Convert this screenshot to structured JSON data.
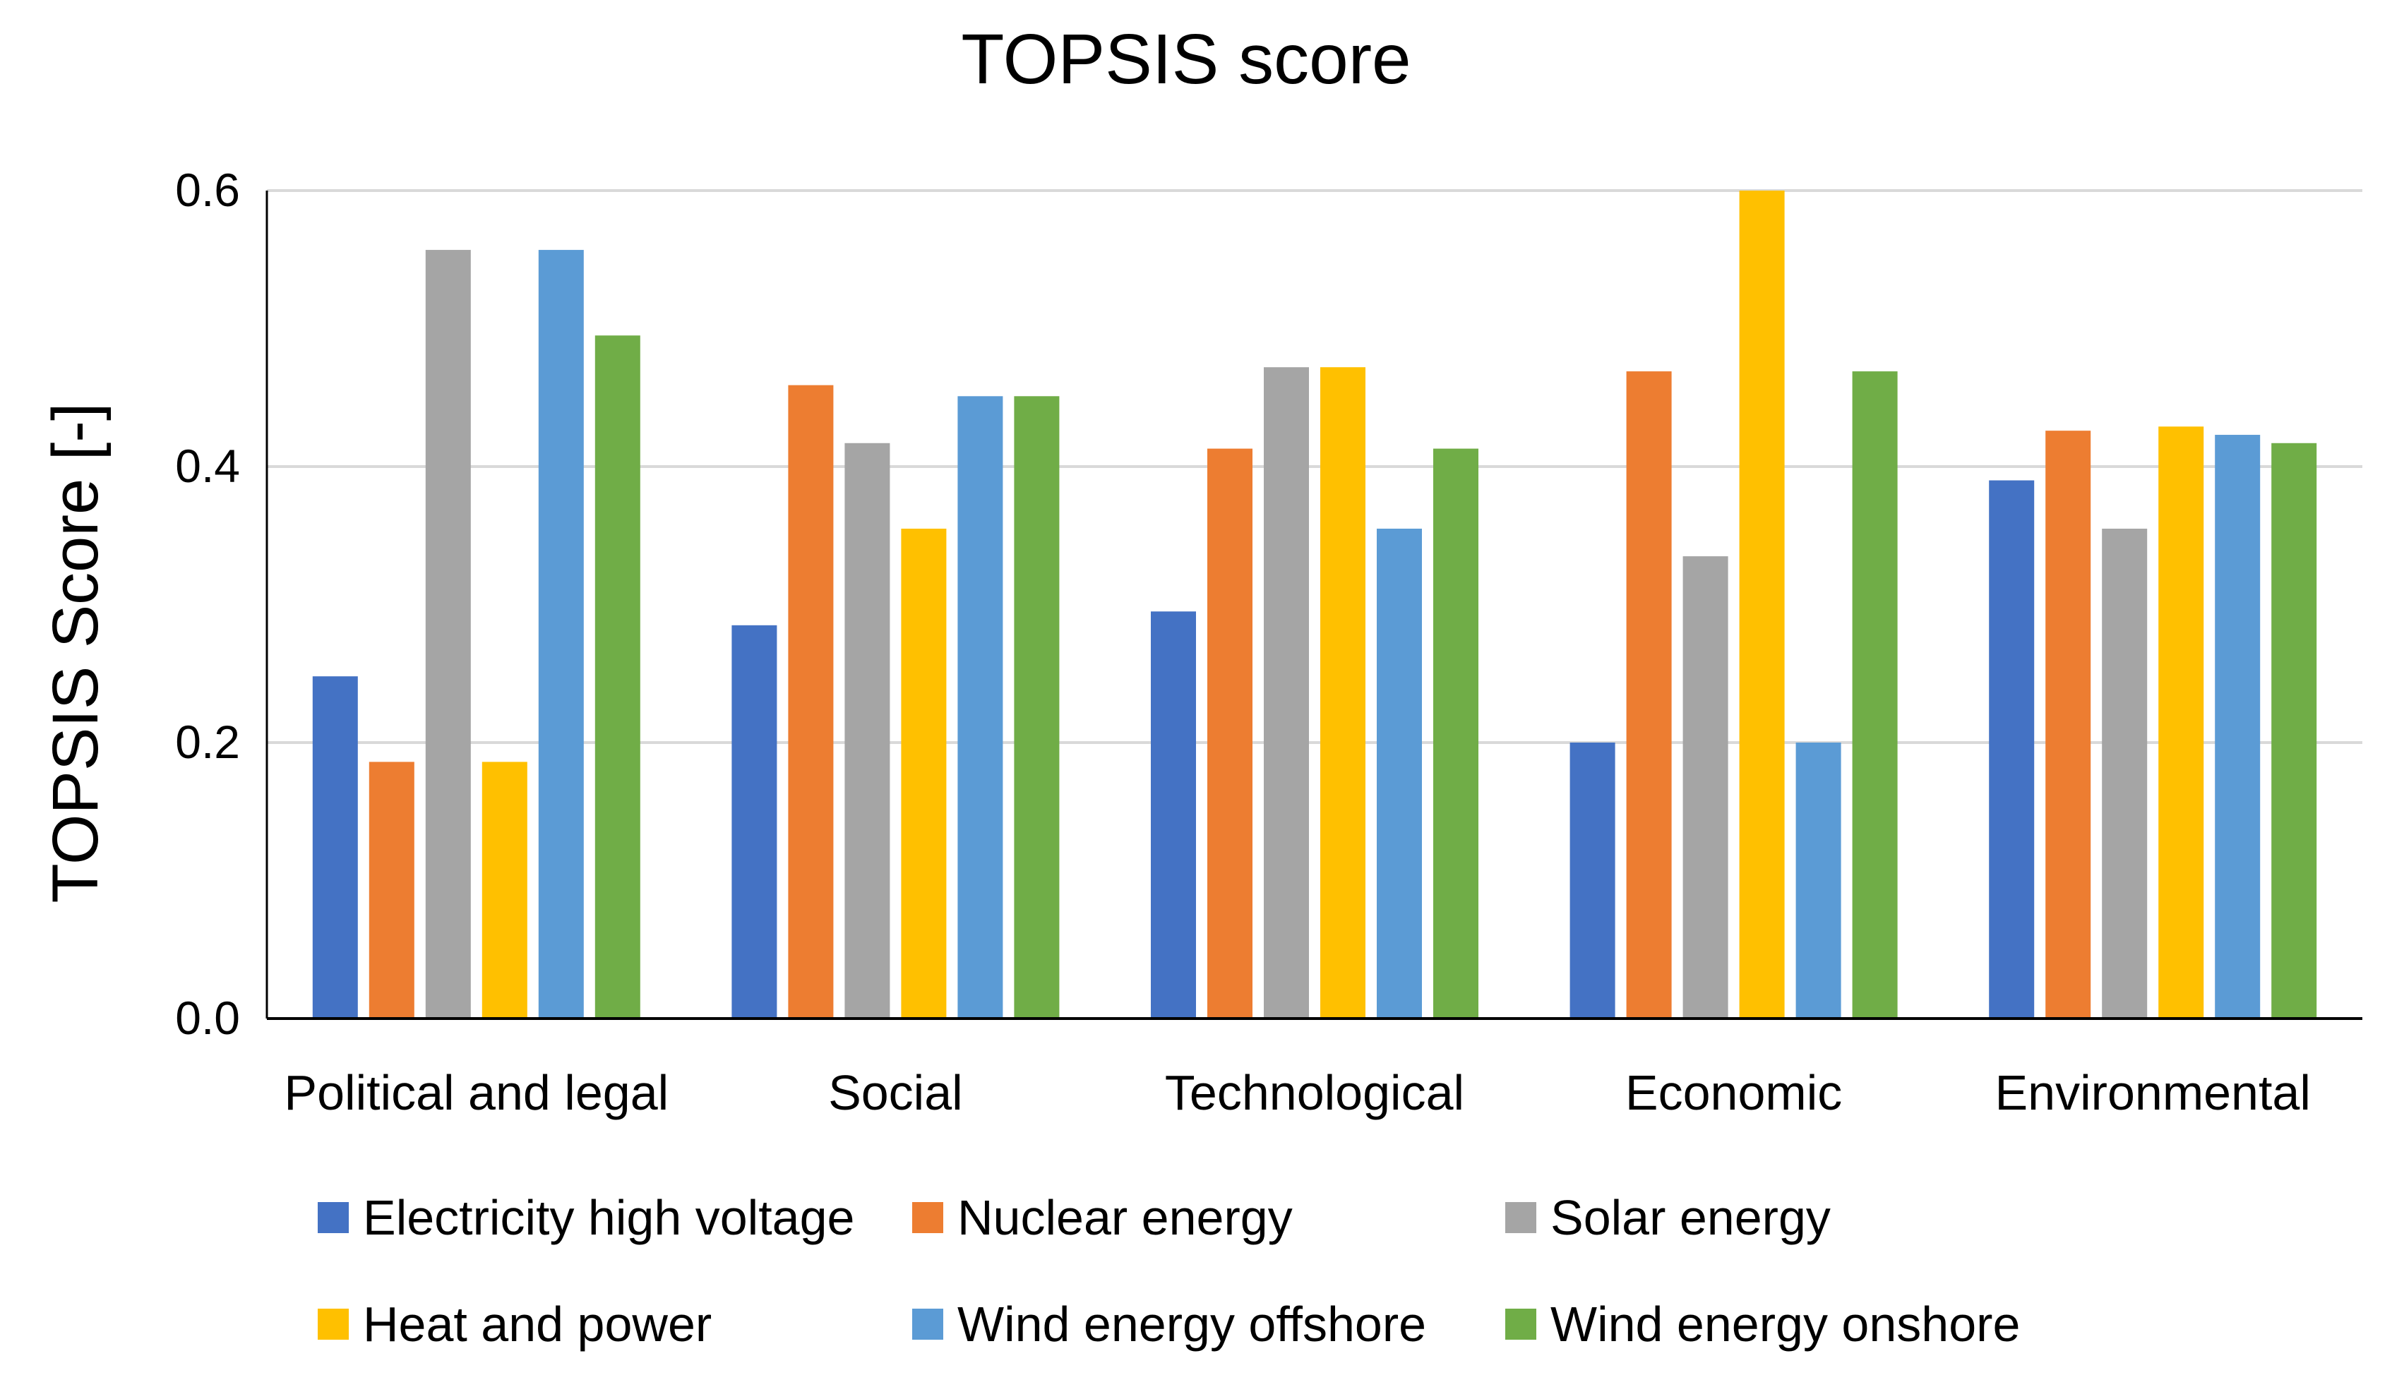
{
  "chart_data": {
    "type": "bar",
    "title": "TOPSIS score",
    "xlabel": "",
    "ylabel": "TOPSIS Score [-]",
    "ylim": [
      0,
      0.6
    ],
    "yticks": [
      0.0,
      0.2,
      0.4,
      0.6
    ],
    "ytick_labels": [
      "0.0",
      "0.2",
      "0.4",
      "0.6"
    ],
    "grid": true,
    "legend_position": "bottom",
    "categories": [
      "Political and legal",
      "Social",
      "Technological",
      "Economic",
      "Environmental"
    ],
    "series": [
      {
        "name": "Electricity high voltage",
        "color": "#4472C4",
        "values": [
          0.248,
          0.285,
          0.295,
          0.2,
          0.39
        ]
      },
      {
        "name": "Nuclear energy",
        "color": "#ED7D31",
        "values": [
          0.186,
          0.459,
          0.413,
          0.469,
          0.426
        ]
      },
      {
        "name": "Solar energy",
        "color": "#A5A5A5",
        "values": [
          0.557,
          0.417,
          0.472,
          0.335,
          0.355
        ]
      },
      {
        "name": "Heat and power",
        "color": "#FFC000",
        "values": [
          0.186,
          0.355,
          0.472,
          0.6,
          0.429
        ]
      },
      {
        "name": "Wind energy offshore",
        "color": "#5B9BD5",
        "values": [
          0.557,
          0.451,
          0.355,
          0.2,
          0.423
        ]
      },
      {
        "name": "Wind energy onshore",
        "color": "#70AD47",
        "values": [
          0.495,
          0.451,
          0.413,
          0.469,
          0.417
        ]
      }
    ]
  }
}
